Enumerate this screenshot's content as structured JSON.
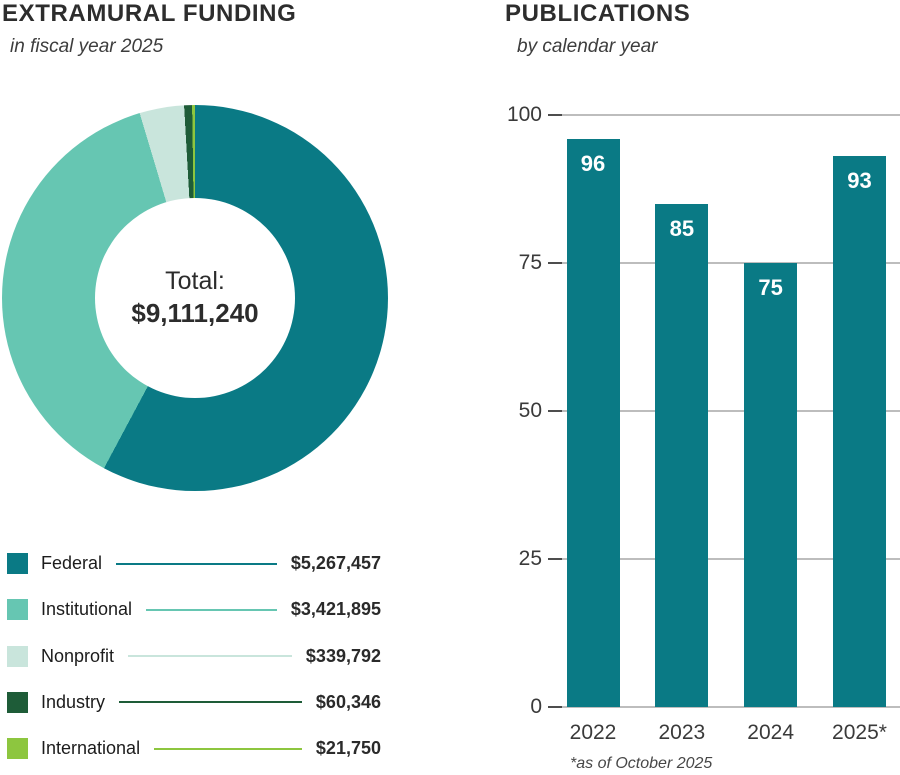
{
  "chart_data": [
    {
      "type": "pie",
      "subtype": "donut",
      "title": "EXTRAMURAL FUNDING",
      "subtitle": "in fiscal year 2025",
      "center_label": "Total:",
      "center_value_text": "$9,111,240",
      "total": 9111240,
      "start_angle_deg": 0,
      "direction": "clockwise",
      "legend_position": "bottom",
      "slices": [
        {
          "label": "Federal",
          "value": 5267457,
          "value_text": "$5,267,457",
          "color": "#0a7a85"
        },
        {
          "label": "Institutional",
          "value": 3421895,
          "value_text": "$3,421,895",
          "color": "#66c6b2"
        },
        {
          "label": "Nonprofit",
          "value": 339792,
          "value_text": "$339,792",
          "color": "#c9e5dc"
        },
        {
          "label": "Industry",
          "value": 60346,
          "value_text": "$60,346",
          "color": "#1e5c38"
        },
        {
          "label": "International",
          "value": 21750,
          "value_text": "$21,750",
          "color": "#8dc63f"
        }
      ]
    },
    {
      "type": "bar",
      "title": "PUBLICATIONS",
      "subtitle": "by calendar year",
      "categories": [
        "2022",
        "2023",
        "2024",
        "2025*"
      ],
      "values": [
        96,
        85,
        75,
        93
      ],
      "ylim": [
        0,
        100
      ],
      "yticks": [
        100,
        75,
        50,
        25,
        0
      ],
      "grid": true,
      "bar_color": "#0a7a85",
      "value_label_color": "#ffffff",
      "footnote": "*as of October 2025"
    }
  ],
  "colors": {
    "gridline": "#bdbdbd",
    "tick": "#4d4d4d",
    "title_text": "#2d2d2d",
    "axis_text": "#3a3a3a"
  }
}
